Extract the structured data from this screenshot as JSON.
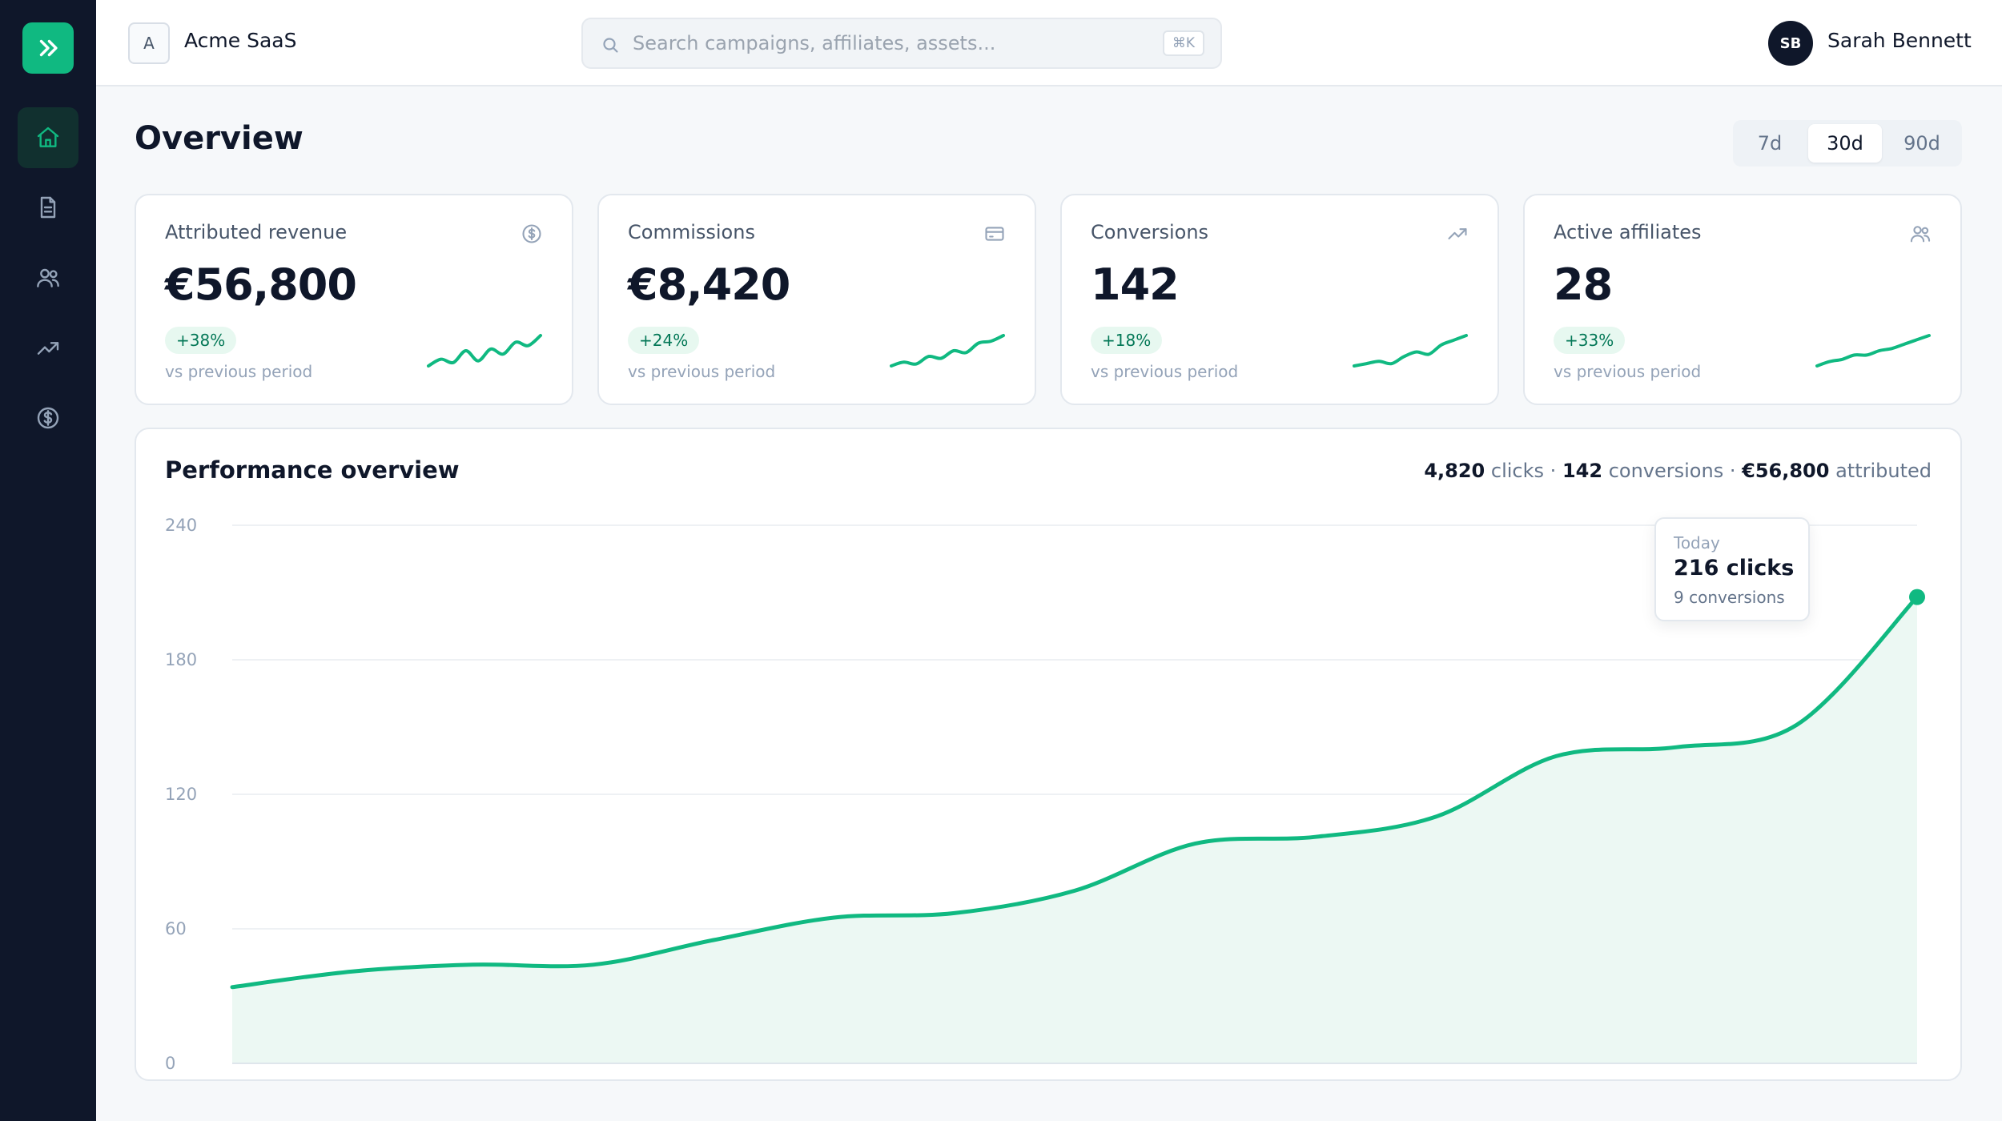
{
  "app": {
    "workspace_initial": "A",
    "workspace_name": "Acme SaaS"
  },
  "sidebar": {
    "logo_icon": "double-chevron-right-icon",
    "items": [
      {
        "name": "home",
        "icon": "home-icon",
        "active": true
      },
      {
        "name": "documents",
        "icon": "document-icon",
        "active": false
      },
      {
        "name": "affiliates",
        "icon": "users-icon",
        "active": false
      },
      {
        "name": "analytics",
        "icon": "trending-up-icon",
        "active": false
      },
      {
        "name": "payouts",
        "icon": "dollar-icon",
        "active": false
      }
    ]
  },
  "search": {
    "placeholder": "Search campaigns, affiliates, assets...",
    "value": "",
    "shortcut": "⌘K"
  },
  "user": {
    "initials": "SB",
    "name": "Sarah Bennett"
  },
  "page": {
    "title": "Overview"
  },
  "range": {
    "options": [
      "7d",
      "30d",
      "90d"
    ],
    "selected": "30d"
  },
  "kpis": [
    {
      "label": "Attributed revenue",
      "value": "€56,800",
      "delta": "+38%",
      "sub": "vs previous period",
      "icon": "dollar-circle-icon",
      "spark": [
        10,
        14,
        12,
        19,
        13,
        20,
        17,
        24,
        22,
        28
      ]
    },
    {
      "label": "Commissions",
      "value": "€8,420",
      "delta": "+24%",
      "sub": "vs previous period",
      "icon": "credit-card-icon",
      "spark": [
        10,
        12,
        11,
        15,
        14,
        18,
        17,
        22,
        23,
        26
      ]
    },
    {
      "label": "Conversions",
      "value": "142",
      "delta": "+18%",
      "sub": "vs previous period",
      "icon": "trending-up-icon",
      "spark": [
        10,
        11,
        12,
        11,
        14,
        16,
        15,
        19,
        21,
        23
      ]
    },
    {
      "label": "Active affiliates",
      "value": "28",
      "delta": "+33%",
      "sub": "vs previous period",
      "icon": "users-icon",
      "spark": [
        10,
        12,
        13,
        15,
        15,
        17,
        18,
        20,
        22,
        24
      ]
    }
  ],
  "performance": {
    "title": "Performance overview",
    "summary": {
      "clicks": "4,820",
      "clicks_label": "clicks",
      "conversions": "142",
      "conversions_label": "conversions",
      "attributed": "€56,800",
      "attributed_label": "attributed",
      "sep": "·"
    },
    "tooltip": {
      "label": "Today",
      "main": "216 clicks",
      "sub": "9 conversions"
    }
  },
  "colors": {
    "accent": "#10b981",
    "sidebar": "#0f172a",
    "fill": "#ecf8f3"
  },
  "chart_data": {
    "type": "area",
    "title": "Performance overview",
    "x": [
      1,
      2,
      3,
      4,
      5,
      6,
      7,
      8,
      9,
      10,
      11,
      12,
      13,
      14,
      15
    ],
    "series": [
      {
        "values": [
          34,
          41,
          44,
          44,
          55,
          65,
          67,
          77,
          98,
          101,
          110,
          137,
          141,
          151,
          208
        ]
      }
    ],
    "ylim": [
      0,
      240
    ],
    "yticks": [
      0,
      60,
      120,
      180,
      240
    ],
    "grid": true,
    "legend": "none"
  }
}
